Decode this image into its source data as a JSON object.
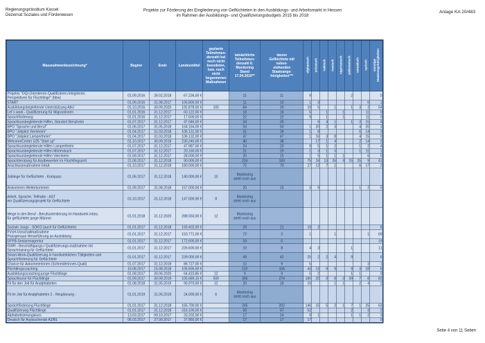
{
  "page_header": {
    "agency_line1": "Regierungspräsidium Kassel",
    "agency_line2": "Dezernat Soziales und Förderwesen",
    "title_line1": "Projekte zur Förderung der Eingliederung von Geflüchteten in den Ausbildungs- und Arbeitsmarkt in Hessen",
    "title_line2": "im Rahmen der Ausbildungs- und Qualifizierungsbudgets 2015 bis 2018",
    "annex": "Anlage KA 20/483"
  },
  "footer": {
    "page_label": "Seite 4 von 11 Seiten"
  },
  "colors": {
    "header_bg": "#4F81BD",
    "row_light": "#D8E2F0",
    "row_light_alt": "#C7D6EA",
    "row_highlight": "#9AB5D8",
    "row_highlight_alt": "#8EABD0",
    "grid_line": "#1F3A5F",
    "grid_strong": "#17375E"
  },
  "table": {
    "columns": {
      "name": "Massnahmenbezeichnung*",
      "beginn": "Beginn",
      "ende": "Ende",
      "landesmittel": "Landesmittel",
      "geplante": "geplante\nTeilnehmen-\ndenzahl bei\nnoch nicht\nbeendeten,\nbzw. noch\nnicht\nbegonnenen\nMaßnahmen",
      "tatsaechliche": "tatsächliche\nTeilnehmen-\ndenzahl lt.\nMonitoring\nStand\n17.04.2019**",
      "davon": "davon\nGeflüchtete mit\nneben-\nstehenden\nStaatsange-\nhörigkeiten***"
    },
    "nationality_columns": [
      "afghanisch",
      "eritreisch",
      "irakisch",
      "iranisch",
      "nigerianisch",
      "pakistanisch",
      "somalisch",
      "syrisch",
      "sonstige\nStaatsangehörigkeiten"
    ],
    "monitoring_note": "Monitoring\nsteht noch aus",
    "rows": [
      {
        "n": "Projekts \"OQI-Orientieren-Qualifizieren-Integrieren:\nPerspektiven für Flüchtlinge\" (bbw)",
        "b": "01.09.2016",
        "e": "28.02.2018",
        "m": "67.236,00 €",
        "g": "",
        "t": "11",
        "d": "11",
        "nat": [
          "9",
          "",
          "",
          "",
          "",
          "2",
          "",
          "",
          "0"
        ],
        "s": 2
      },
      {
        "n": "START",
        "b": "01.09.2016",
        "e": "31.08.2017",
        "m": "106.800,00 €",
        "g": "",
        "t": "11",
        "d": "10",
        "nat": [
          "1",
          "3",
          "",
          "",
          "",
          "",
          "",
          "6",
          "1"
        ],
        "s": 1
      },
      {
        "n": "Ausbildungsbegleitende Unterstützung AbU",
        "b": "01.10.2016",
        "e": "30.09.2020",
        "m": "192.878,00 €",
        "g": "105",
        "t": "84",
        "d": "30",
        "nat": [
          "18",
          "5",
          "",
          "1",
          "",
          "1",
          "3",
          "2",
          "54"
        ],
        "s": 1
      },
      {
        "n": "Let´s work - Qualifizierung für Migrantinnen",
        "b": "01.01.2016",
        "e": "31.12.2017",
        "m": "60.122,00 €",
        "g": "",
        "t": "18",
        "d": "18",
        "nat": [
          "5",
          "",
          "1",
          "",
          "1",
          "",
          "",
          "11",
          "0"
        ],
        "s": 1
      },
      {
        "n": "Sprachförderung",
        "b": "01.01.2016",
        "e": "31.12.2017",
        "m": "17.500,00 €",
        "g": "",
        "t": "22",
        "d": "22",
        "nat": [
          "9",
          "",
          "1",
          "",
          "1",
          "",
          "",
          "11",
          "0"
        ],
        "s": 1
      },
      {
        "n": "Sprachkursbegleitende Hilfen, Standort Bensheim",
        "b": "01.07.2017",
        "e": "31.12.2017",
        "m": "47.046,00 €",
        "g": "",
        "t": "34",
        "d": "30",
        "nat": [
          "",
          "6",
          "4",
          "1",
          "",
          "1",
          "3",
          "15",
          "4"
        ],
        "s": 1
      },
      {
        "n": "BPO \"Sprache und Beruf\"",
        "b": "01.06.2017",
        "e": "31.05.2018",
        "m": "164.164,00 €",
        "g": "",
        "t": "53",
        "d": "50",
        "nat": [
          "1",
          "20",
          "2",
          "3",
          "",
          "",
          "4",
          "20",
          "3"
        ],
        "s": 1
      },
      {
        "n": "BPO \"Jobpilot Viernheim\"",
        "b": "01.04.2017",
        "e": "31.03.2018",
        "m": "106.131,00 €",
        "g": "",
        "t": "31",
        "d": "28",
        "nat": [
          "1",
          "8",
          "",
          "",
          "",
          "",
          "5",
          "14",
          "3"
        ],
        "s": 1
      },
      {
        "n": "BPO \"Jobpilot Lampertheim\"",
        "b": "01.04.2017",
        "e": "31.03.2018",
        "m": "106.132,00 €",
        "g": "",
        "t": "47",
        "d": "47",
        "nat": [
          "1",
          "16",
          "3",
          "8",
          "",
          "",
          "4",
          "15",
          "0"
        ],
        "s": 1
      },
      {
        "n": "WelcomeCenter U25 \"Start up\"",
        "b": "01.10.2017",
        "e": "30.09.2018",
        "m": "230.240,00 €",
        "g": "",
        "t": "40",
        "d": "38",
        "nat": [
          "",
          "17",
          "1",
          "4",
          "",
          "",
          "2",
          "14",
          "2"
        ],
        "s": 1
      },
      {
        "n": "Sprachkursbegleitende Hilfen Lampertheim",
        "b": "01.07.2017",
        "e": "31.12.2017",
        "m": "47.987,00 €",
        "g": "",
        "t": "24",
        "d": "20",
        "nat": [
          "9",
          "5",
          "1",
          "2",
          "",
          "",
          "1",
          "2",
          "4"
        ],
        "s": 1
      },
      {
        "n": "Sprachkursbegleitende Hilfen Mörlenbach",
        "b": "01.07.2017",
        "e": "31.12.2017",
        "m": "20.160,00 €",
        "g": "",
        "t": "21",
        "d": "20",
        "nat": [
          "1",
          "3",
          "1",
          "3",
          "",
          "",
          "1",
          "11",
          "1"
        ],
        "s": 1
      },
      {
        "n": "Sprachkursbegleitende Hilfen Viernheim",
        "b": "01.09.2017",
        "e": "31.12.2017",
        "m": "28.000,00 €",
        "g": "",
        "t": "20",
        "d": "15",
        "nat": [
          "1",
          "5",
          "1",
          "1",
          "1",
          "",
          "",
          "6",
          "5"
        ],
        "s": 1
      },
      {
        "n": "Sprachberatung für Asylbewerber im Flüchtlingsamt",
        "b": "21.08.2017",
        "e": "31.12.2018",
        "m": "90.000,00 €",
        "g": "",
        "t": "224",
        "d": "183",
        "nat": [
          "75",
          "16",
          "13",
          "26",
          "4",
          "15",
          "25",
          "9",
          "41"
        ],
        "s": 1
      },
      {
        "n": "Anschlussmaßnahme InteA",
        "b": "01.10.2017",
        "e": "31.12.2018",
        "m": "180.000,00 €",
        "g": "",
        "t": "72",
        "d": "70",
        "nat": [
          "27",
          "12",
          "7",
          "1",
          "",
          "",
          "6",
          "17",
          "2"
        ],
        "s": 1
      },
      {
        "n": "Joblinge für Geflüchtete - Kompass",
        "b": "01.06.2017",
        "e": "31.12.2018",
        "m": "140.000,00 €",
        "g": "10",
        "t": "Monitoring\nsteht noch aus",
        "d": "",
        "nat": [
          "",
          "",
          "",
          "",
          "",
          "",
          "",
          "",
          ""
        ],
        "s": 3
      },
      {
        "n": "Ankommen-Weiterkommen",
        "b": "01.09.2017",
        "e": "31.08.2018",
        "m": "157.000,00 €",
        "g": "",
        "t": "20",
        "d": "15",
        "nat": [
          "3",
          "9",
          "",
          "",
          "",
          "",
          "1",
          "2",
          "5"
        ],
        "s": 1
      },
      {
        "n": "Arbeit, Sprache, Teilhabe - AST\nein Qualifizierungsprojekt für Geflüchtete",
        "b": "01.10.2017",
        "e": "31.12.2018",
        "m": "147.000,00 €",
        "g": "8",
        "t": "Monitoring\nsteht noch aus",
        "d": "",
        "nat": [
          "",
          "",
          "",
          "",
          "",
          "",
          "",
          "",
          ""
        ],
        "s": 3
      },
      {
        "n": "Wege in den Beruf - Berufsorientierung im Handwerk inbes.\nfür geflüchtete junge Männer",
        "b": "01.01.2018",
        "e": "31.12.2020",
        "m": "288.550,00 €",
        "g": "12",
        "t": "Monitoring\nsteht noch aus",
        "d": "",
        "nat": [
          "",
          "",
          "",
          "",
          "",
          "",
          "",
          "",
          ""
        ],
        "s": 3
      },
      {
        "n": "Soziale Jungs - SOKO (auch für Geflüchtete)",
        "b": "01.01.2017",
        "e": "31.12.2018",
        "m": "159.402,00 €",
        "g": "",
        "t": "29",
        "d": "21",
        "nat": [
          "19",
          "2",
          "",
          "",
          "",
          "",
          "",
          "",
          "8"
        ],
        "s": 1
      },
      {
        "n": "FVsH-Vorschaltmaßnahme\nPassgenaue Heranführung an Ausbildung",
        "b": "01.01.2017",
        "e": "31.12.2017",
        "m": "153.771,00 €",
        "g": "",
        "t": "72",
        "d": "3",
        "nat": [
          "1",
          "",
          "",
          "1",
          "",
          "",
          "",
          "1",
          "69"
        ],
        "s": 2
      },
      {
        "n": "GFFB-Seniorenagentur",
        "b": "01.01.2017",
        "e": "31.12.2017",
        "m": "172.600,00 €",
        "g": "",
        "t": "19",
        "d": "0",
        "nat": [
          "",
          "",
          "",
          "",
          "",
          "",
          "",
          "",
          "19"
        ],
        "s": 1
      },
      {
        "n": "GWR - Beschäftigungs-/ Qualifizierungs-maßnahme mit\nSprachtraining für Geflüchtete",
        "b": "01.01.2017",
        "e": "31.12.2017",
        "m": "226.600,00 €",
        "g": "",
        "t": "19",
        "d": "8",
        "nat": [
          "4",
          "3",
          "",
          "",
          "",
          "1",
          "",
          "",
          "11"
        ],
        "s": 2
      },
      {
        "n": "Smart-Work-Qualifizierung in handwerklichen Tätigkeiten und\nSprachförderung für Geflüchtete",
        "b": "01.01.2017",
        "e": "31.12.2017",
        "m": "239.000,00 €",
        "g": "",
        "t": "48",
        "d": "42",
        "nat": [
          "25",
          "2",
          "2",
          "4",
          "",
          "9",
          "",
          "",
          "6"
        ],
        "s": 2
      },
      {
        "n": "Chance für Ankommerinnen (Schneiderinnen-Quali)",
        "b": "01.07.2017",
        "e": "31.12.2018",
        "m": "86.727,00 €",
        "g": "",
        "t": "10",
        "d": "9",
        "nat": [
          "6",
          "",
          "",
          "",
          "",
          "",
          "",
          "3",
          "1"
        ],
        "s": 1
      },
      {
        "n": "Flüchtlingscoaching",
        "b": "16.08.2017",
        "e": "15.08.2018",
        "m": "105.836,00 €",
        "g": "",
        "t": "110",
        "d": "104",
        "nat": [
          "43",
          "13",
          "9",
          "9",
          "",
          "9",
          "3",
          "18",
          "6"
        ],
        "s": 1
      },
      {
        "n": "Ausbildungscoaching junge Flüchtlinge",
        "b": "01.08.2017",
        "e": "30.06.2020",
        "m": "64.423,85 €",
        "g": "12",
        "t": "9",
        "d": "9",
        "nat": [
          "5",
          "2",
          "",
          "",
          "",
          "1",
          "1",
          "",
          "0"
        ],
        "s": 1
      },
      {
        "n": "Sprachkurse für Flüchtlinge",
        "b": "01.09.2017",
        "e": "30.09.2019",
        "m": "105.689,15 €",
        "g": "500",
        "t": "356",
        "d": "274",
        "nat": [
          "186",
          "20",
          "3",
          "8",
          "3",
          "39",
          "7",
          "8",
          "82"
        ],
        "s": 1
      },
      {
        "n": "Fit für den Job für Analphabeten",
        "b": "01.08.2018",
        "e": "31.05.2019",
        "m": "90.970,00 €",
        "g": "12",
        "t": "20",
        "d": "18",
        "nat": [
          "10",
          "",
          "",
          "1",
          "1",
          "",
          "2",
          "4",
          "2"
        ],
        "s": 1
      },
      {
        "n": "Fit im Job für Analphabeten 2 - Neuplanung -",
        "b": "01.01.2019",
        "e": "31.05.2019",
        "m": "24.000,00 €",
        "g": "6",
        "t": "Monitoring\nsteht noch aus",
        "d": "",
        "nat": [
          "",
          "",
          "",
          "",
          "",
          "",
          "",
          "",
          ""
        ],
        "s": 3
      },
      {
        "n": "Sprachförderung Flüchtlinge",
        "b": "01.01.2017",
        "e": "31.12.2018",
        "m": "165.700,00 €",
        "g": "",
        "t": "265",
        "d": "202",
        "nat": [
          "146",
          "15",
          "5",
          "2",
          "1",
          "7",
          "1",
          "25",
          "63"
        ],
        "s": 1
      },
      {
        "n": "Qualifizierung  Flüchtlinge",
        "b": "01.01.2017",
        "e": "31.12.2018",
        "m": "316.100,00 €",
        "g": "",
        "t": "59",
        "d": "57",
        "nat": [
          "52",
          "",
          "",
          "",
          "",
          "2",
          "",
          "3",
          "2"
        ],
        "s": 1
      },
      {
        "n": "Alphabetisierungskurs",
        "b": "13.03.2017",
        "e": "09.10.2017",
        "m": "33.202,00 €",
        "g": "",
        "t": "17",
        "d": "14",
        "nat": [
          "9",
          "1",
          "",
          "",
          "",
          "1",
          "1",
          "2",
          "3"
        ],
        "s": 1
      },
      {
        "n": "Deutsch für Asylsuchende A2/B1",
        "b": "06.03.2017",
        "e": "27.09.2017",
        "m": "37.850,00 €",
        "g": "",
        "t": "17",
        "d": "17",
        "nat": [
          "17",
          "",
          "",
          "",
          "",
          "",
          "",
          "",
          "0"
        ],
        "s": 1
      }
    ]
  }
}
